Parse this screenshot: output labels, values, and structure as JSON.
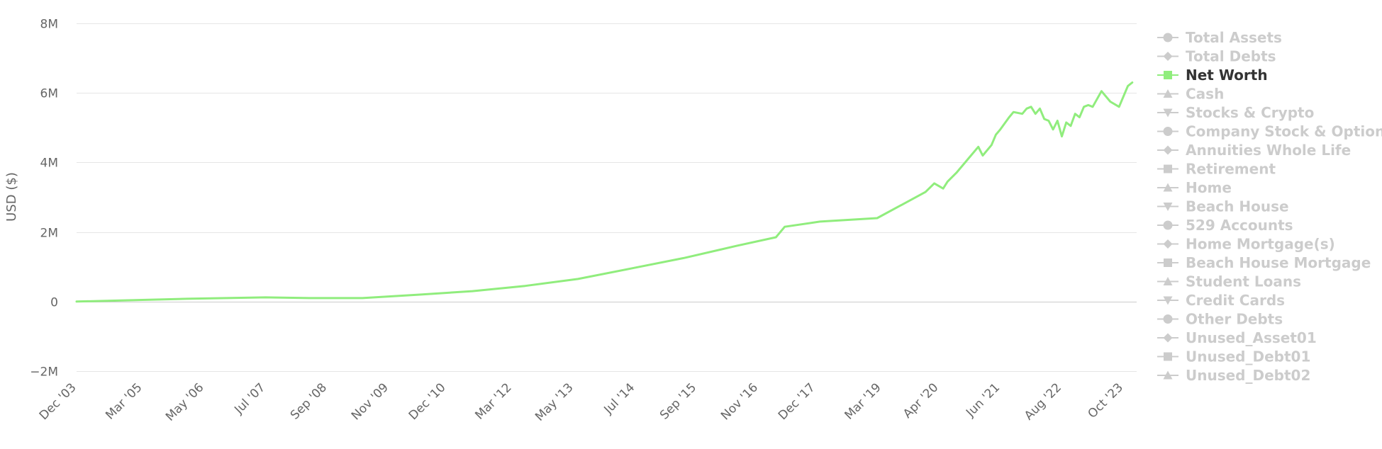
{
  "colors": {
    "series": "#90ed7d",
    "legend_active_text": "#333333",
    "legend_inactive": "#cccccc",
    "grid": "#e6e6e6",
    "axis_text": "#666666"
  },
  "chart_data": {
    "type": "line",
    "title": "",
    "xlabel": "",
    "ylabel": "USD ($)",
    "ylim": [
      -2000000,
      8000000
    ],
    "y_ticks": [
      8000000,
      6000000,
      4000000,
      2000000,
      0,
      -2000000
    ],
    "y_tick_labels": [
      "8M",
      "6M",
      "4M",
      "2M",
      "0",
      "−2M"
    ],
    "x_range": [
      "2003-12",
      "2024-01"
    ],
    "x_tick_labels": [
      "Dec '03",
      "Mar '05",
      "May '06",
      "Jul '07",
      "Sep '08",
      "Nov '09",
      "Dec '10",
      "Mar '12",
      "May '13",
      "Jul '14",
      "Sep '15",
      "Nov '16",
      "Dec '17",
      "Mar '19",
      "Apr '20",
      "Jun '21",
      "Aug '22",
      "Oct '23"
    ],
    "x_tick_dates": [
      "2003-12",
      "2005-03",
      "2006-05",
      "2007-07",
      "2008-09",
      "2009-11",
      "2010-12",
      "2012-03",
      "2013-05",
      "2014-07",
      "2015-09",
      "2016-11",
      "2017-12",
      "2019-03",
      "2020-04",
      "2021-06",
      "2022-08",
      "2023-10"
    ],
    "grid": true,
    "legend_position": "right",
    "legend": [
      {
        "name": "Total Assets",
        "marker": "circle",
        "visible": false
      },
      {
        "name": "Total Debts",
        "marker": "diamond",
        "visible": false
      },
      {
        "name": "Net Worth",
        "marker": "square",
        "visible": true
      },
      {
        "name": "Cash",
        "marker": "triangle",
        "visible": false
      },
      {
        "name": "Stocks & Crypto",
        "marker": "triangle-down",
        "visible": false
      },
      {
        "name": "Company Stock & Options",
        "marker": "circle",
        "visible": false
      },
      {
        "name": "Annuities Whole Life",
        "marker": "diamond",
        "visible": false
      },
      {
        "name": "Retirement",
        "marker": "square",
        "visible": false
      },
      {
        "name": "Home",
        "marker": "triangle",
        "visible": false
      },
      {
        "name": "Beach House",
        "marker": "triangle-down",
        "visible": false
      },
      {
        "name": "529 Accounts",
        "marker": "circle",
        "visible": false
      },
      {
        "name": "Home Mortgage(s)",
        "marker": "diamond",
        "visible": false
      },
      {
        "name": "Beach House Mortgage",
        "marker": "square",
        "visible": false
      },
      {
        "name": "Student Loans",
        "marker": "triangle",
        "visible": false
      },
      {
        "name": "Credit Cards",
        "marker": "triangle-down",
        "visible": false
      },
      {
        "name": "Other Debts",
        "marker": "circle",
        "visible": false
      },
      {
        "name": "Unused_Asset01",
        "marker": "diamond",
        "visible": false
      },
      {
        "name": "Unused_Debt01",
        "marker": "square",
        "visible": false
      },
      {
        "name": "Unused_Debt02",
        "marker": "triangle",
        "visible": false
      }
    ],
    "series": [
      {
        "name": "Net Worth",
        "x": [
          "2003-12",
          "2006-01",
          "2007-07",
          "2008-05",
          "2009-05",
          "2010-06",
          "2011-06",
          "2012-06",
          "2013-06",
          "2014-06",
          "2015-06",
          "2016-06",
          "2017-03",
          "2017-05",
          "2018-01",
          "2019-02",
          "2020-01",
          "2020-03",
          "2020-05",
          "2020-06",
          "2020-08",
          "2020-10",
          "2020-11",
          "2021-01",
          "2021-02",
          "2021-04",
          "2021-05",
          "2021-06",
          "2021-08",
          "2021-09",
          "2021-11",
          "2021-12",
          "2022-01",
          "2022-02",
          "2022-03",
          "2022-04",
          "2022-05",
          "2022-06",
          "2022-07",
          "2022-08",
          "2022-09",
          "2022-10",
          "2022-11",
          "2022-12",
          "2023-01",
          "2023-02",
          "2023-03",
          "2023-05",
          "2023-07",
          "2023-09",
          "2023-11",
          "2023-12"
        ],
        "values": [
          0,
          80000,
          120000,
          100000,
          100000,
          200000,
          300000,
          450000,
          650000,
          950000,
          1250000,
          1600000,
          1850000,
          2150000,
          2300000,
          2400000,
          3150000,
          3400000,
          3250000,
          3450000,
          3700000,
          4000000,
          4150000,
          4450000,
          4200000,
          4500000,
          4800000,
          4950000,
          5300000,
          5450000,
          5400000,
          5550000,
          5600000,
          5400000,
          5550000,
          5250000,
          5200000,
          4950000,
          5200000,
          4750000,
          5150000,
          5050000,
          5400000,
          5300000,
          5600000,
          5650000,
          5600000,
          6050000,
          5750000,
          5600000,
          6200000,
          6300000
        ]
      }
    ]
  }
}
